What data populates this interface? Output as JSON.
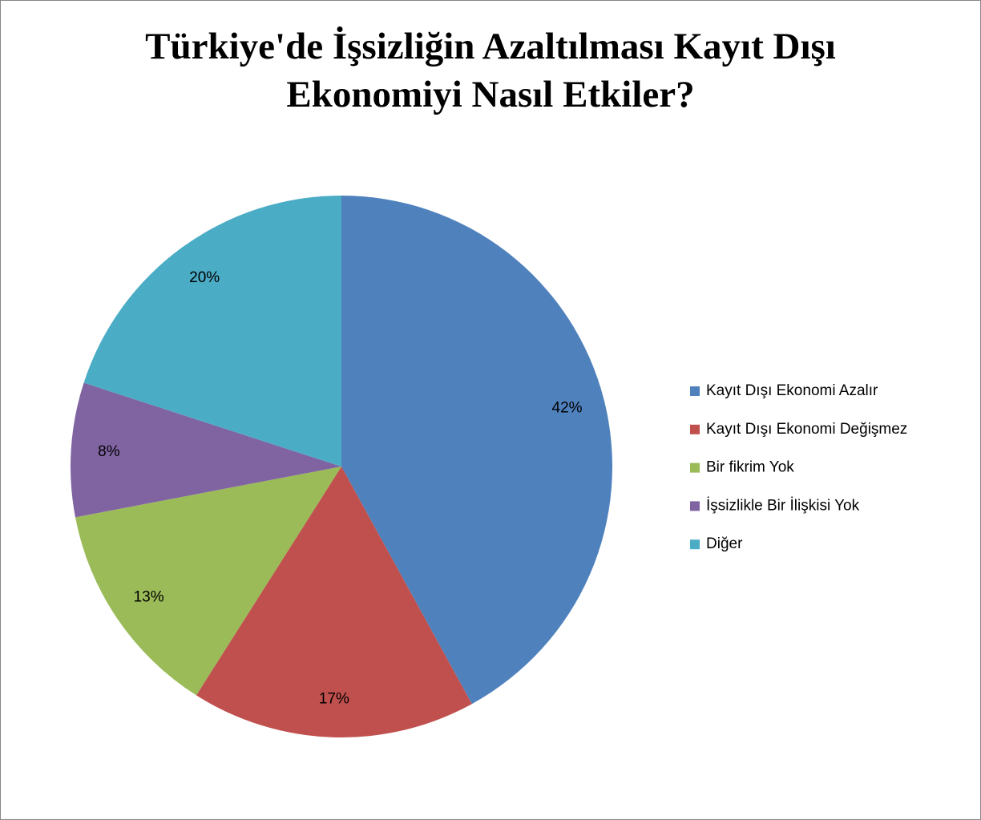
{
  "chart_data": {
    "type": "pie",
    "title": "Türkiye'de İşsizliğin Azaltılması Kayıt Dışı Ekonomiyi Nasıl Etkiler?",
    "categories": [
      "Kayıt Dışı Ekonomi Azalır",
      "Kayıt Dışı Ekonomi Değişmez",
      "Bir fikrim Yok",
      "İşsizlikle Bir İlişkisi Yok",
      "Diğer"
    ],
    "values": [
      42,
      17,
      13,
      8,
      20
    ],
    "value_labels": [
      "42%",
      "17%",
      "13%",
      "8%",
      "20%"
    ],
    "colors": [
      "#4f81bd",
      "#c0504d",
      "#9bbb59",
      "#8064a2",
      "#4bacc6"
    ],
    "legend": "right"
  }
}
